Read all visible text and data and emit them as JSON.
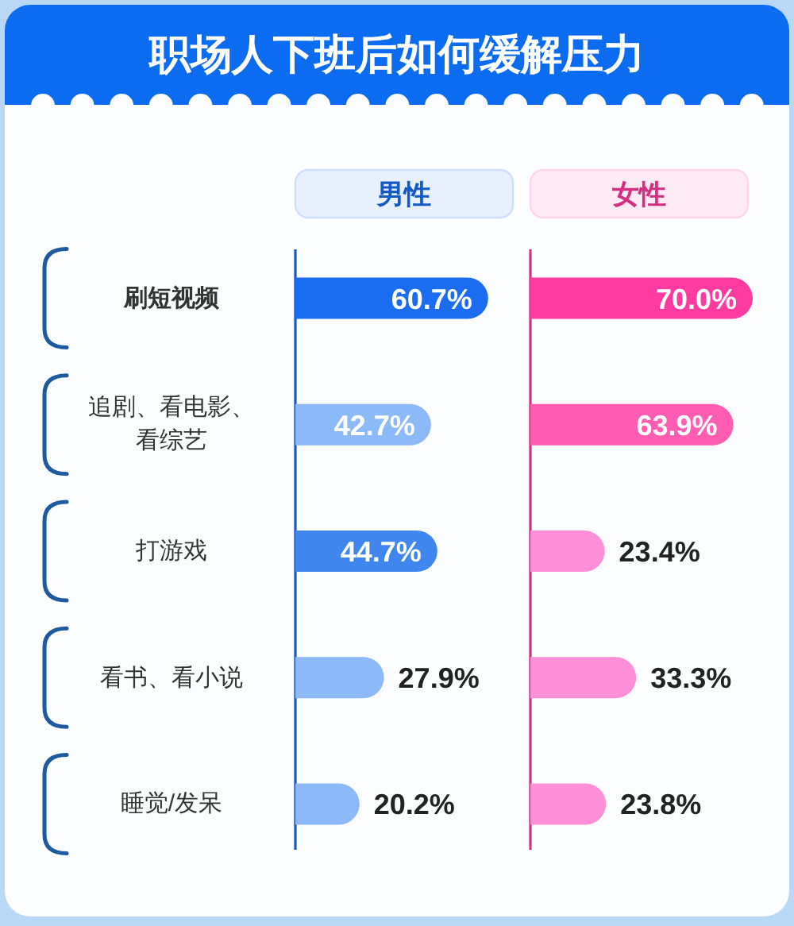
{
  "chart_data": [
    {
      "type": "bar",
      "orientation": "horizontal",
      "title": "职场人下班后如何缓解压力",
      "categories": [
        "刷短视频",
        "追剧、看电影、看综艺",
        "打游戏",
        "看书、看小说",
        "睡觉/发呆"
      ],
      "tick_labels": "y",
      "series": [
        {
          "name": "男性",
          "colors": [
            "#1a6cf0",
            "#8cb9f7",
            "#3f86ee",
            "#8cb9f7",
            "#8cb9f7"
          ],
          "values": [
            60.7,
            42.7,
            44.7,
            27.9,
            20.2
          ],
          "value_labels": [
            "60.7%",
            "42.7%",
            "44.7%",
            "27.9%",
            "20.2%"
          ]
        }
      ]
    },
    {
      "type": "bar",
      "orientation": "horizontal",
      "categories": [
        null,
        null,
        null,
        null,
        null
      ],
      "tick_labels": false,
      "series": [
        {
          "name": "女性",
          "colors": [
            "#ff3aa0",
            "#ff5cb2",
            "#ff8fd9",
            "#ff8fd9",
            "#ff8fd9"
          ],
          "values": [
            70.0,
            63.9,
            23.4,
            33.3,
            23.8
          ],
          "value_labels": [
            "70.0%",
            "63.9%",
            "23.4%",
            "33.3%",
            "23.8%"
          ]
        }
      ]
    }
  ]
}
